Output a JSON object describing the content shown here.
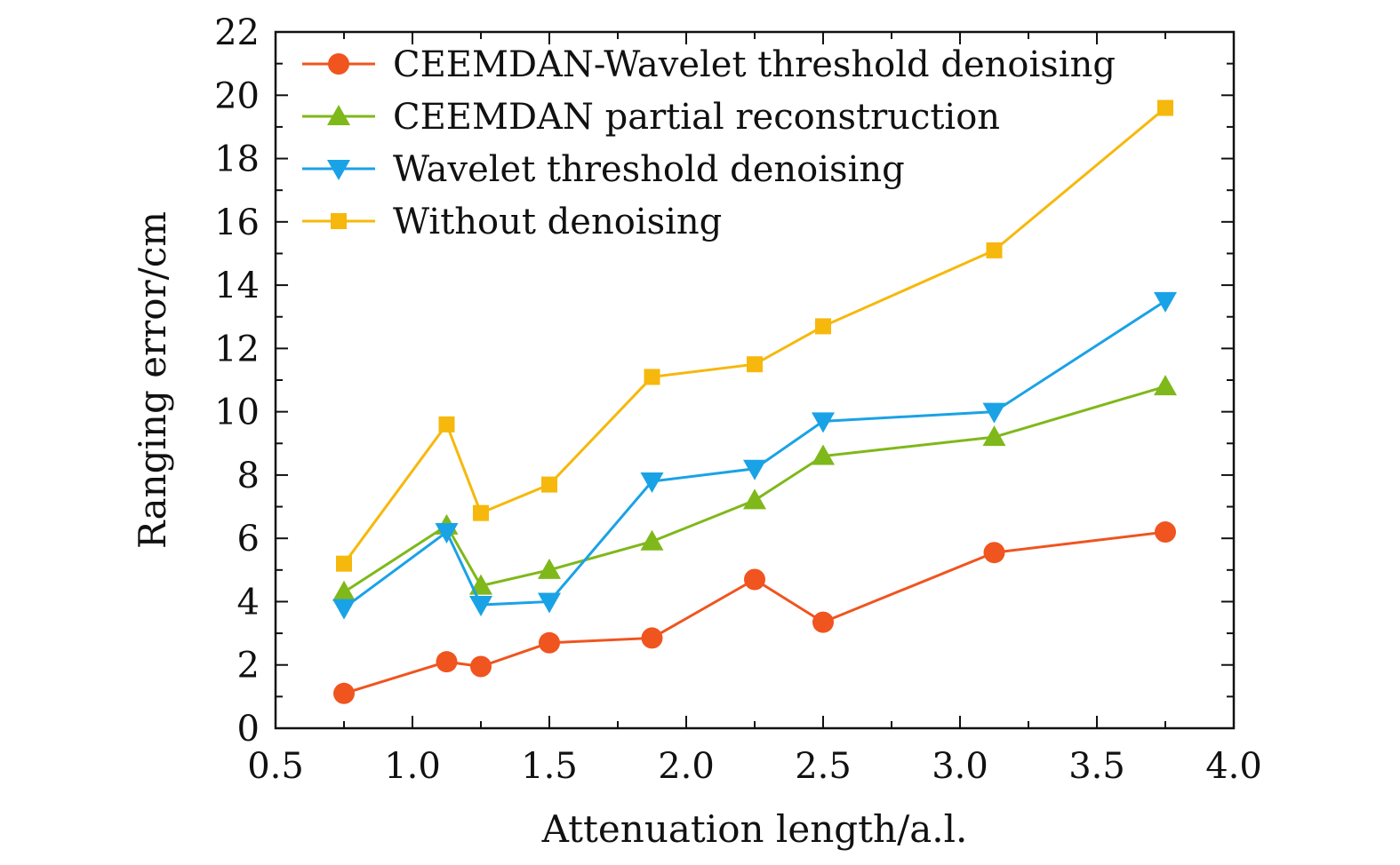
{
  "chart_data": {
    "type": "line",
    "xlabel": "Attenuation length/a.l.",
    "ylabel": "Ranging error/cm",
    "xlim": [
      0.5,
      4.0
    ],
    "ylim": [
      0,
      22
    ],
    "x_ticks": [
      "0.5",
      "1.0",
      "1.5",
      "2.0",
      "2.5",
      "3.0",
      "3.5",
      "4.0"
    ],
    "y_ticks": [
      "0",
      "2",
      "4",
      "6",
      "8",
      "10",
      "12",
      "14",
      "16",
      "18",
      "20",
      "22"
    ],
    "x": [
      0.75,
      1.125,
      1.25,
      1.5,
      1.875,
      2.25,
      2.5,
      3.125,
      3.75
    ],
    "grid": false,
    "legend_position": "top-left",
    "series": [
      {
        "name": "CEEMDAN-Wavelet threshold denoising",
        "marker": "circle",
        "color": "#f0541f",
        "values": [
          1.1,
          2.1,
          1.95,
          2.7,
          2.85,
          4.7,
          3.35,
          5.55,
          6.2
        ]
      },
      {
        "name": "CEEMDAN partial reconstruction",
        "marker": "triangle-up",
        "color": "#7fb81a",
        "values": [
          4.3,
          6.4,
          4.5,
          5.0,
          5.9,
          7.2,
          8.6,
          9.2,
          10.8
        ]
      },
      {
        "name": "Wavelet threshold denoising",
        "marker": "triangle-down",
        "color": "#1aa2e6",
        "values": [
          3.8,
          6.2,
          3.9,
          4.0,
          7.8,
          8.2,
          9.7,
          10.0,
          13.5
        ]
      },
      {
        "name": "Without denoising",
        "marker": "square",
        "color": "#f6b80c",
        "values": [
          5.2,
          9.6,
          6.8,
          7.7,
          11.1,
          11.5,
          12.7,
          15.1,
          19.6
        ]
      }
    ]
  }
}
